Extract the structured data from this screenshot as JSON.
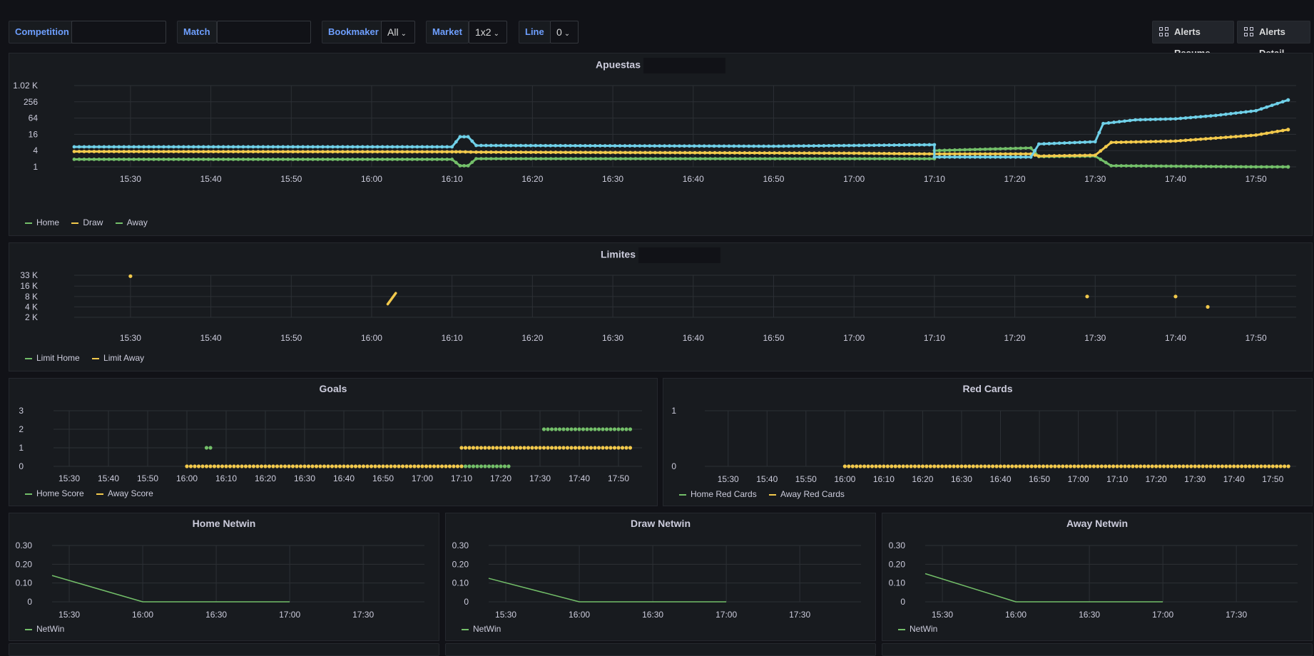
{
  "vars": {
    "competition": {
      "label": "Competition",
      "value": ""
    },
    "match": {
      "label": "Match",
      "value": ""
    },
    "bookmaker": {
      "label": "Bookmaker",
      "value": "All"
    },
    "market": {
      "label": "Market",
      "value": "1x2"
    },
    "line": {
      "label": "Line",
      "value": "0"
    }
  },
  "buttons": {
    "alerts_resume": "Alerts Resume",
    "alerts_detail": "Alerts Detail"
  },
  "icons": {
    "grid": "dashboard-grid-icon",
    "chevron": "chevron-down-icon"
  },
  "colors": {
    "green": "#73bf69",
    "yellow": "#f2c94c",
    "blue": "#6fd0e8",
    "bg": "#181b1f",
    "grid": "#2c3035",
    "text": "#ccccdc",
    "accent": "#6e9fff"
  },
  "panels": {
    "apuestas": {
      "title": "Apuestas",
      "legend": [
        "Home",
        "Draw",
        "Away"
      ]
    },
    "limites": {
      "title": "Limites",
      "legend": [
        "Limit Home",
        "Limit Away"
      ]
    },
    "goals": {
      "title": "Goals",
      "legend": [
        "Home Score",
        "Away Score"
      ]
    },
    "redcards": {
      "title": "Red Cards",
      "legend": [
        "Home Red Cards",
        "Away Red Cards"
      ]
    },
    "home_netwin": {
      "title": "Home Netwin",
      "legend": [
        "NetWin"
      ]
    },
    "draw_netwin": {
      "title": "Draw Netwin",
      "legend": [
        "NetWin"
      ]
    },
    "away_netwin": {
      "title": "Away Netwin",
      "legend": [
        "NetWin"
      ]
    }
  },
  "chart_data": [
    {
      "id": "apuestas",
      "type": "line",
      "scale": "log2",
      "title": "Apuestas",
      "x_ticks": [
        "15:30",
        "15:40",
        "15:50",
        "16:00",
        "16:10",
        "16:20",
        "16:30",
        "16:40",
        "16:50",
        "17:00",
        "17:10",
        "17:20",
        "17:30",
        "17:40",
        "17:50"
      ],
      "y_ticks": [
        "1",
        "4",
        "16",
        "64",
        "256",
        "1.02 K"
      ],
      "y_values": [
        1,
        4,
        16,
        64,
        256,
        1024
      ],
      "series": [
        {
          "name": "Home",
          "color": "#73bf69",
          "x": [
            "15:23",
            "16:10",
            "16:11",
            "16:12",
            "16:13",
            "17:10",
            "17:10",
            "17:22",
            "17:23",
            "17:30",
            "17:32",
            "17:50",
            "17:54"
          ],
          "y": [
            1.9,
            1.9,
            1.1,
            1.1,
            2.0,
            2.0,
            4.0,
            5.0,
            2.4,
            2.5,
            1.1,
            1.0,
            1.0
          ]
        },
        {
          "name": "Draw",
          "color": "#f2c94c",
          "x": [
            "15:23",
            "16:10",
            "16:11",
            "16:13",
            "17:00",
            "17:10",
            "17:10",
            "17:22",
            "17:23",
            "17:30",
            "17:32",
            "17:40",
            "17:50",
            "17:54"
          ],
          "y": [
            3.7,
            3.6,
            3.6,
            3.5,
            3.2,
            3.0,
            3.0,
            3.0,
            2.5,
            2.7,
            8,
            9,
            15,
            24
          ]
        },
        {
          "name": "Away",
          "color": "#6fd0e8",
          "x": [
            "15:23",
            "16:10",
            "16:11",
            "16:12",
            "16:13",
            "16:50",
            "17:10",
            "17:10",
            "17:22",
            "17:23",
            "17:30",
            "17:31",
            "17:35",
            "17:40",
            "17:45",
            "17:50",
            "17:54"
          ],
          "y": [
            5.5,
            5.5,
            13,
            13,
            6.2,
            5.8,
            6.6,
            2.3,
            2.3,
            7,
            8.5,
            40,
            55,
            60,
            80,
            120,
            300
          ]
        }
      ]
    },
    {
      "id": "limites",
      "type": "scatter",
      "scale": "log2",
      "title": "Limites",
      "x_ticks": [
        "15:30",
        "15:40",
        "15:50",
        "16:00",
        "16:10",
        "16:20",
        "16:30",
        "16:40",
        "16:50",
        "17:00",
        "17:10",
        "17:20",
        "17:30",
        "17:40",
        "17:50"
      ],
      "y_ticks": [
        "2 K",
        "4 K",
        "8 K",
        "16 K",
        "33 K"
      ],
      "y_values": [
        2000,
        4000,
        8000,
        16000,
        33000
      ],
      "series": [
        {
          "name": "Limit Home",
          "color": "#73bf69",
          "x": [],
          "y": []
        },
        {
          "name": "Limit Away",
          "color": "#f2c94c",
          "x": [
            "15:30",
            "17:29",
            "17:40",
            "17:44"
          ],
          "y": [
            31000,
            8000,
            8000,
            4000
          ]
        }
      ],
      "segment": {
        "series": "Limit Away",
        "x": [
          "16:02",
          "16:03"
        ],
        "y": [
          4800,
          10000
        ]
      }
    },
    {
      "id": "goals",
      "type": "scatter",
      "title": "Goals",
      "x_ticks": [
        "15:30",
        "15:40",
        "15:50",
        "16:00",
        "16:10",
        "16:20",
        "16:30",
        "16:40",
        "16:50",
        "17:00",
        "17:10",
        "17:20",
        "17:30",
        "17:40",
        "17:50"
      ],
      "y_ticks": [
        "0",
        "1",
        "2",
        "3"
      ],
      "ylim": [
        0,
        3
      ],
      "series": [
        {
          "name": "Home Score",
          "color": "#73bf69",
          "runs": [
            {
              "from": "16:05",
              "to": "16:06",
              "y": 1
            },
            {
              "from": "17:10",
              "to": "17:22",
              "y": 0
            },
            {
              "from": "17:31",
              "to": "17:53",
              "y": 2
            }
          ]
        },
        {
          "name": "Away Score",
          "color": "#f2c94c",
          "runs": [
            {
              "from": "16:00",
              "to": "17:10",
              "y": 0
            },
            {
              "from": "17:10",
              "to": "17:53",
              "y": 1
            }
          ]
        }
      ]
    },
    {
      "id": "redcards",
      "type": "scatter",
      "title": "Red Cards",
      "x_ticks": [
        "15:30",
        "15:40",
        "15:50",
        "16:00",
        "16:10",
        "16:20",
        "16:30",
        "16:40",
        "16:50",
        "17:00",
        "17:10",
        "17:20",
        "17:30",
        "17:40",
        "17:50"
      ],
      "y_ticks": [
        "0",
        "1"
      ],
      "ylim": [
        0,
        1
      ],
      "series": [
        {
          "name": "Home Red Cards",
          "color": "#73bf69",
          "runs": []
        },
        {
          "name": "Away Red Cards",
          "color": "#f2c94c",
          "runs": [
            {
              "from": "16:00",
              "to": "17:54",
              "y": 0
            }
          ]
        }
      ]
    },
    {
      "id": "home_netwin",
      "type": "line",
      "title": "Home Netwin",
      "x_ticks": [
        "15:30",
        "16:00",
        "16:30",
        "17:00",
        "17:30"
      ],
      "y_ticks": [
        "0",
        "0.10",
        "0.20",
        "0.30"
      ],
      "ylim": [
        0,
        0.3
      ],
      "series": [
        {
          "name": "NetWin",
          "color": "#73bf69",
          "x": [
            "15:23",
            "16:00",
            "17:00"
          ],
          "y": [
            0.14,
            0,
            0
          ]
        }
      ]
    },
    {
      "id": "draw_netwin",
      "type": "line",
      "title": "Draw Netwin",
      "x_ticks": [
        "15:30",
        "16:00",
        "16:30",
        "17:00",
        "17:30"
      ],
      "y_ticks": [
        "0",
        "0.10",
        "0.20",
        "0.30"
      ],
      "ylim": [
        0,
        0.3
      ],
      "series": [
        {
          "name": "NetWin",
          "color": "#73bf69",
          "x": [
            "15:23",
            "16:00",
            "17:00"
          ],
          "y": [
            0.125,
            0,
            0
          ]
        }
      ]
    },
    {
      "id": "away_netwin",
      "type": "line",
      "title": "Away Netwin",
      "x_ticks": [
        "15:30",
        "16:00",
        "16:30",
        "17:00",
        "17:30"
      ],
      "y_ticks": [
        "0",
        "0.10",
        "0.20",
        "0.30"
      ],
      "ylim": [
        0,
        0.3
      ],
      "series": [
        {
          "name": "NetWin",
          "color": "#73bf69",
          "x": [
            "15:23",
            "16:00",
            "17:00"
          ],
          "y": [
            0.15,
            0,
            0
          ]
        }
      ]
    }
  ]
}
